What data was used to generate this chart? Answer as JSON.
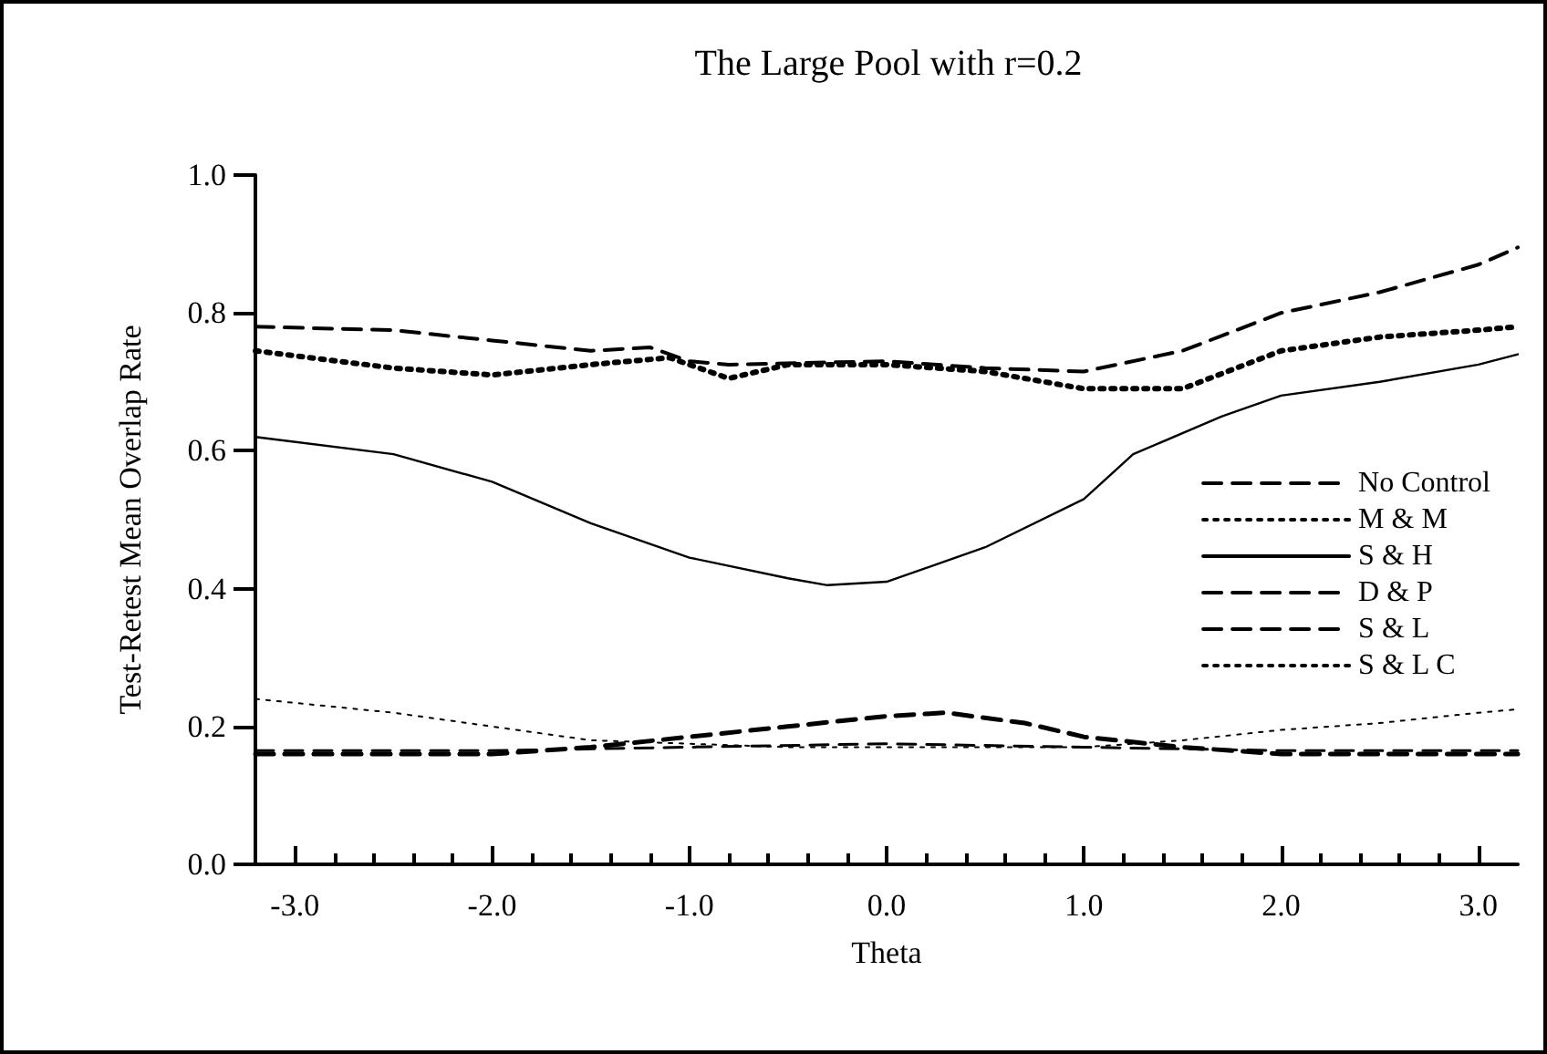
{
  "chart_data": {
    "type": "line",
    "title": "The Large Pool with r=0.2",
    "xlabel": "Theta",
    "ylabel": "Test-Retest Mean Overlap Rate",
    "xlim": [
      -3.2,
      3.2
    ],
    "ylim": [
      0,
      1
    ],
    "xticks": [
      {
        "value": -3,
        "label": "-3.0"
      },
      {
        "value": -2,
        "label": "-2.0"
      },
      {
        "value": -1,
        "label": "-1.0"
      },
      {
        "value": 0,
        "label": "0.0"
      },
      {
        "value": 1,
        "label": "1.0"
      },
      {
        "value": 2,
        "label": "2.0"
      },
      {
        "value": 3,
        "label": "3.0"
      }
    ],
    "yticks": [
      {
        "value": 0,
        "label": "0.0"
      },
      {
        "value": 0.2,
        "label": "0.2"
      },
      {
        "value": 0.4,
        "label": "0.4"
      },
      {
        "value": 0.6,
        "label": "0.6"
      },
      {
        "value": 0.8,
        "label": "0.8"
      },
      {
        "value": 1,
        "label": "1.0"
      }
    ],
    "grid": false,
    "legend": "right",
    "marker": "none",
    "series": [
      {
        "name": "No Control",
        "color": "#000000",
        "line_style": "dashed",
        "x": [
          -3.2,
          -2.5,
          -2.0,
          -1.5,
          -1.2,
          -1.0,
          -0.8,
          0.0,
          0.5,
          1.0,
          1.5,
          2.0,
          2.5,
          3.0,
          3.2
        ],
        "values": [
          0.78,
          0.775,
          0.76,
          0.745,
          0.75,
          0.73,
          0.725,
          0.73,
          0.72,
          0.715,
          0.745,
          0.8,
          0.83,
          0.87,
          0.895
        ]
      },
      {
        "name": "M & M",
        "color": "#000000",
        "line_style": "dotted",
        "x": [
          -3.2,
          -2.5,
          -2.0,
          -1.5,
          -1.1,
          -0.8,
          -0.5,
          0.0,
          0.5,
          1.0,
          1.5,
          2.0,
          2.5,
          3.0,
          3.2
        ],
        "values": [
          0.745,
          0.72,
          0.71,
          0.725,
          0.735,
          0.705,
          0.725,
          0.725,
          0.715,
          0.69,
          0.69,
          0.745,
          0.765,
          0.775,
          0.78
        ]
      },
      {
        "name": "S & H",
        "color": "#000000",
        "line_style": "solid",
        "x": [
          -3.2,
          -2.5,
          -2.0,
          -1.5,
          -1.0,
          -0.5,
          -0.3,
          0.0,
          0.5,
          1.0,
          1.25,
          1.7,
          2.0,
          2.5,
          3.0,
          3.2
        ],
        "values": [
          0.62,
          0.595,
          0.555,
          0.495,
          0.445,
          0.415,
          0.405,
          0.41,
          0.46,
          0.53,
          0.595,
          0.65,
          0.68,
          0.7,
          0.725,
          0.74
        ]
      },
      {
        "name": "D & P",
        "color": "#000000",
        "line_style": "dashed",
        "x": [
          -3.2,
          -2.5,
          -2.0,
          -1.5,
          -1.0,
          -0.5,
          0.0,
          0.3,
          0.7,
          1.0,
          1.5,
          2.0,
          3.2
        ],
        "values": [
          0.16,
          0.16,
          0.16,
          0.17,
          0.185,
          0.2,
          0.215,
          0.22,
          0.205,
          0.185,
          0.17,
          0.16,
          0.16
        ]
      },
      {
        "name": "S & L",
        "color": "#000000",
        "line_style": "dashed",
        "x": [
          -3.2,
          -2.0,
          -1.0,
          0.0,
          1.0,
          2.0,
          3.2
        ],
        "values": [
          0.165,
          0.165,
          0.17,
          0.175,
          0.17,
          0.165,
          0.165
        ]
      },
      {
        "name": "S & L C",
        "color": "#000000",
        "line_style": "dotted",
        "x": [
          -3.2,
          -2.5,
          -2.0,
          -1.5,
          -1.0,
          -0.5,
          0.0,
          0.5,
          1.0,
          1.5,
          2.0,
          2.5,
          3.0,
          3.2
        ],
        "values": [
          0.24,
          0.22,
          0.2,
          0.18,
          0.175,
          0.17,
          0.17,
          0.17,
          0.17,
          0.18,
          0.195,
          0.205,
          0.22,
          0.225
        ]
      }
    ]
  }
}
